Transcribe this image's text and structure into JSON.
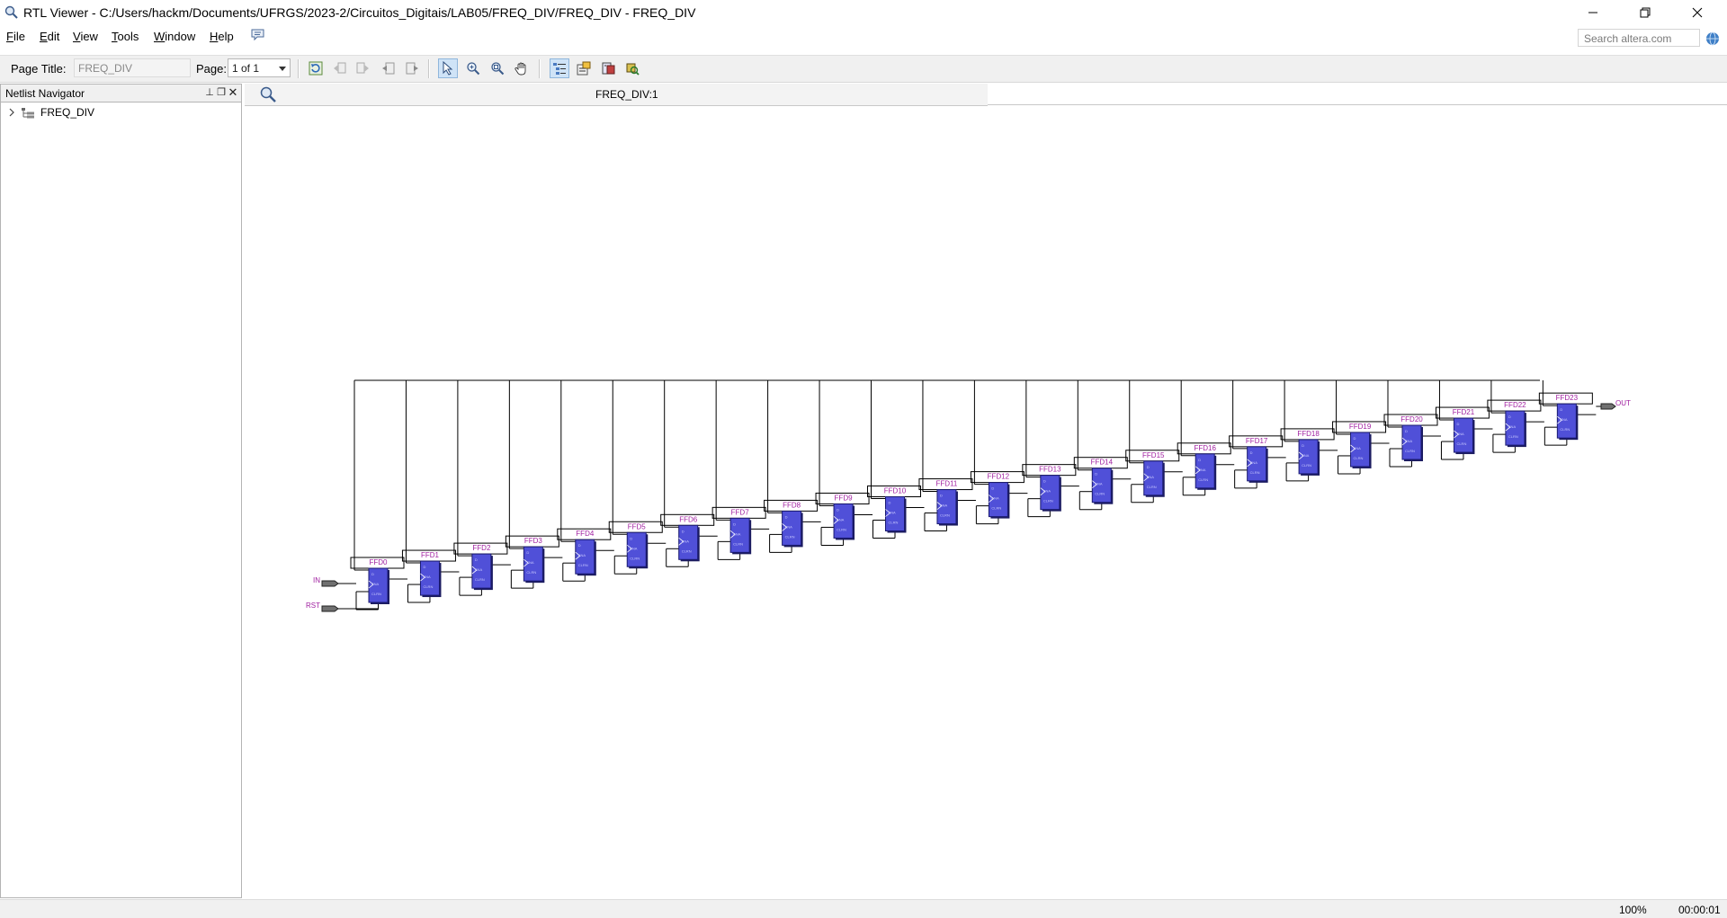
{
  "window": {
    "title": "RTL Viewer - C:/Users/hackm/Documents/UFRGS/2023-2/Circuitos_Digitais/LAB05/FREQ_DIV/FREQ_DIV - FREQ_DIV"
  },
  "menu": [
    {
      "label": "File",
      "mnemonic": "F",
      "rest": "ile"
    },
    {
      "label": "Edit",
      "mnemonic": "E",
      "rest": "dit"
    },
    {
      "label": "View",
      "mnemonic": "V",
      "rest": "iew"
    },
    {
      "label": "Tools",
      "mnemonic": "T",
      "rest": "ools"
    },
    {
      "label": "Window",
      "mnemonic": "W",
      "rest": "indow"
    },
    {
      "label": "Help",
      "mnemonic": "H",
      "rest": "elp"
    }
  ],
  "search": {
    "placeholder": "Search altera.com"
  },
  "toolbar": {
    "page_title_label": "Page Title:",
    "page_title_value": "FREQ_DIV",
    "page_label": "Page:",
    "page_value": "1 of 1"
  },
  "navigator": {
    "title": "Netlist Navigator",
    "root": "FREQ_DIV"
  },
  "canvas": {
    "tab_label": "FREQ_DIV:1",
    "inputs": [
      "IN",
      "RST"
    ],
    "output": "OUT",
    "flipflops": [
      "FFD0",
      "FFD1",
      "FFD2",
      "FFD3",
      "FFD4",
      "FFD5",
      "FFD6",
      "FFD7",
      "FFD8",
      "FFD9",
      "FFD10",
      "FFD11",
      "FFD12",
      "FFD13",
      "FFD14",
      "FFD15",
      "FFD16",
      "FFD17",
      "FFD18",
      "FFD19",
      "FFD20",
      "FFD21",
      "FFD22",
      "FFD23"
    ]
  },
  "status": {
    "zoom": "100%",
    "time": "00:00:01"
  },
  "colors": {
    "ff_fill": "#5050d8",
    "ff_label": "#a020a0",
    "wire": "#000000"
  }
}
